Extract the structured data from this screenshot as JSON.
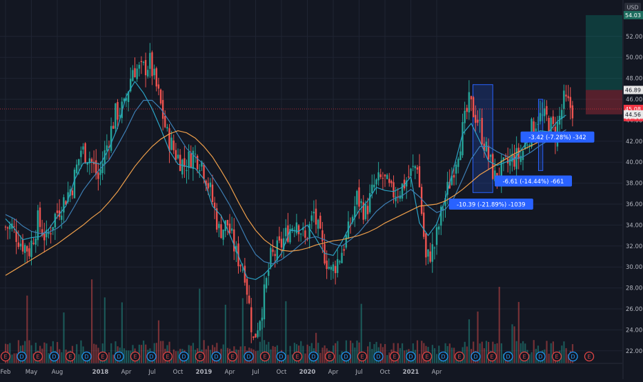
{
  "chart_data": {
    "type": "candlestick",
    "currency": "USD",
    "x_tick_labels": [
      "Feb",
      "May",
      "Aug",
      "2018",
      "Apr",
      "Jul",
      "Oct",
      "2019",
      "Apr",
      "Jul",
      "Oct",
      "2020",
      "Apr",
      "Jul",
      "Oct",
      "2021",
      "Apr"
    ],
    "y_tick_labels": [
      "52.00",
      "50.00",
      "48.00",
      "46.00",
      "44.00",
      "42.00",
      "40.00",
      "38.00",
      "36.00",
      "34.00",
      "32.00",
      "30.00",
      "28.00",
      "26.00",
      "24.00",
      "22.00"
    ],
    "ylim": [
      21.0,
      55.0
    ],
    "price_tags": [
      {
        "label": "54.03",
        "value": 54.03,
        "color": "#1e6d5f"
      },
      {
        "label": "46.89",
        "value": 46.89,
        "color": "#e8e8e8"
      },
      {
        "label": "45.08",
        "value": 45.08,
        "color": "#f23645"
      },
      {
        "label": "03:26:1",
        "value": 44.3,
        "color": "#f23645"
      },
      {
        "label": "44.56",
        "value": 44.56,
        "color": "#e8e8e8"
      }
    ],
    "last_price": 45.08,
    "long_position": {
      "entry": 46.89,
      "target": 54.03,
      "stop": 44.56
    },
    "drawdown_boxes": [
      {
        "start_month": 54.2,
        "end_month": 56.5,
        "high": 47.4,
        "low": 37.1
      },
      {
        "start_month": 61.8,
        "end_month": 62.3,
        "high": 46.0,
        "low": 39.2
      }
    ],
    "measure_labels": [
      {
        "text": "-10.39 (-21.89%) -1039",
        "x_month": 56.3,
        "y": 36.0
      },
      {
        "text": "-6.61 (-14.44%) -661",
        "x_month": 61.2,
        "y": 38.2
      },
      {
        "text": "-3.42 (-7.28%) -342",
        "x_month": 64.0,
        "y": 42.4
      }
    ],
    "earnings_markers": [
      "E",
      "D",
      "E",
      "D",
      "E",
      "D",
      "E",
      "D",
      "E",
      "D",
      "E",
      "D",
      "E",
      "D",
      "E",
      "D",
      "E",
      "D",
      "E",
      "D",
      "E",
      "D",
      "E",
      "D",
      "E",
      "D",
      "E",
      "D",
      "E",
      "D",
      "E",
      "D",
      "E",
      "D",
      "E",
      "D",
      "E"
    ],
    "series": [
      {
        "name": "",
        "kind": "close",
        "values": [
          33.8,
          32.4,
          31.6,
          34.4,
          32.6,
          34.9,
          36.3,
          37.8,
          41.2,
          40.5,
          38.4,
          41.6,
          44.6,
          45.2,
          49.0,
          48.7,
          49.5,
          46.3,
          42.5,
          40.8,
          39.7,
          40.8,
          40.0,
          37.2,
          33.5,
          34.1,
          31.2,
          29.6,
          22.9,
          26.2,
          30.8,
          31.8,
          33.4,
          34.6,
          32.5,
          35.1,
          31.8,
          29.5,
          31.0,
          33.3,
          36.6,
          35.2,
          37.7,
          38.5,
          37.0,
          37.4,
          38.6,
          39.9,
          30.6,
          32.0,
          35.9,
          38.8,
          42.1,
          45.6,
          44.1,
          41.1,
          38.5,
          39.4,
          40.3,
          40.6,
          42.7,
          44.3,
          44.1,
          42.7,
          45.8,
          45.1
        ]
      },
      {
        "name": "",
        "kind": "ma20",
        "color": "#2ba3c4",
        "values": [
          34.6,
          33.7,
          32.6,
          32.8,
          32.9,
          33.6,
          34.8,
          35.8,
          38.3,
          39.9,
          40.0,
          39.8,
          41.3,
          43.3,
          46.3,
          47.7,
          46.6,
          45.1,
          43.2,
          41.1,
          39.8,
          39.6,
          39.4,
          38.4,
          35.8,
          34.9,
          33.1,
          31.1,
          29.0,
          28.8,
          29.3,
          30.2,
          31.3,
          33.5,
          33.4,
          34.0,
          32.7,
          31.3,
          31.1,
          32.4,
          34.0,
          35.4,
          36.3,
          37.6,
          37.3,
          37.2,
          37.6,
          38.6,
          34.2,
          33.0,
          34.1,
          36.5,
          39.5,
          42.7,
          43.7,
          42.0,
          40.1,
          39.7,
          40.0,
          40.3,
          41.4,
          42.5,
          43.0,
          42.9,
          43.9,
          44.5
        ]
      },
      {
        "name": "",
        "kind": "ma50",
        "color": "#3d7fb5",
        "values": [
          35.0,
          34.6,
          33.9,
          33.4,
          33.2,
          33.3,
          33.7,
          34.4,
          35.8,
          37.3,
          38.4,
          39.4,
          40.2,
          41.6,
          43.1,
          44.8,
          45.9,
          45.9,
          45.1,
          43.9,
          42.6,
          41.3,
          40.5,
          39.8,
          38.6,
          37.3,
          35.9,
          34.3,
          32.6,
          31.2,
          30.5,
          30.3,
          30.7,
          31.3,
          32.0,
          32.7,
          32.9,
          32.6,
          32.2,
          32.0,
          32.6,
          33.3,
          34.3,
          35.3,
          36.0,
          36.5,
          36.8,
          37.4,
          36.7,
          35.8,
          35.2,
          35.5,
          36.6,
          38.4,
          40.3,
          41.5,
          41.5,
          41.0,
          40.6,
          40.3,
          40.5,
          41.0,
          41.6,
          42.1,
          42.6,
          43.1
        ]
      },
      {
        "name": "",
        "kind": "ma200",
        "color": "#f0a04b",
        "values": [
          29.2,
          29.7,
          30.2,
          30.7,
          31.2,
          31.7,
          32.2,
          32.8,
          33.4,
          34.0,
          34.7,
          35.3,
          36.2,
          37.2,
          38.4,
          39.6,
          40.6,
          41.5,
          42.2,
          42.7,
          43.0,
          42.8,
          42.3,
          41.5,
          40.5,
          39.2,
          37.8,
          36.2,
          34.7,
          33.5,
          32.6,
          32.0,
          31.6,
          31.5,
          31.6,
          31.8,
          32.1,
          32.3,
          32.5,
          32.6,
          32.8,
          33.0,
          33.3,
          33.7,
          34.2,
          34.6,
          35.0,
          35.4,
          35.8,
          35.9,
          36.0,
          36.3,
          36.8,
          37.4,
          38.1,
          38.8,
          39.3,
          39.8,
          40.3,
          40.8,
          41.2,
          41.6,
          42.0,
          42.3,
          42.6,
          42.9
        ]
      }
    ]
  }
}
